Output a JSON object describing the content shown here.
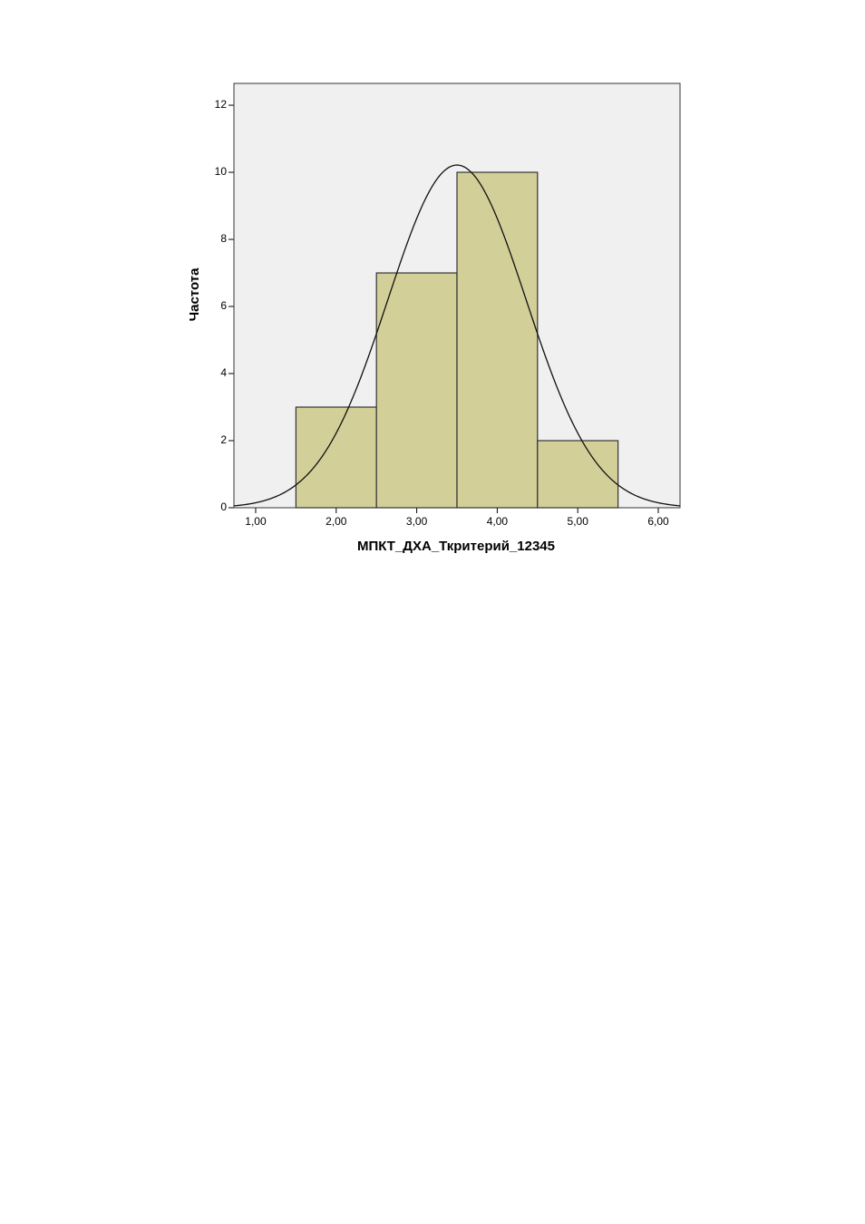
{
  "chart_data": {
    "type": "histogram",
    "x_label": "МПКТ_ДХА_Ткритерий_12345",
    "y_label": "Частота",
    "bins": [
      1.5,
      2.5,
      3.5,
      4.5,
      5.5
    ],
    "values": [
      3,
      7,
      10,
      2
    ],
    "color": "#d3cf99",
    "normal_curve": true,
    "xlim": [
      0.73,
      6.27
    ],
    "ylim": [
      0,
      12.65
    ],
    "xticks": [
      {
        "value": 1,
        "label": "1,00"
      },
      {
        "value": 2,
        "label": "2,00"
      },
      {
        "value": 3,
        "label": "3,00"
      },
      {
        "value": 4,
        "label": "4,00"
      },
      {
        "value": 5,
        "label": "5,00"
      },
      {
        "value": 6,
        "label": "6,00"
      }
    ],
    "yticks": [
      0,
      2,
      4,
      6,
      8,
      10,
      12
    ]
  }
}
